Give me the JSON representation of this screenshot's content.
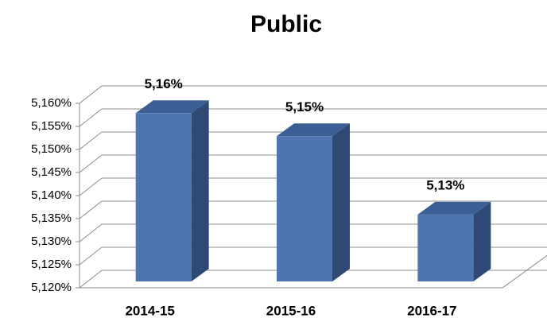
{
  "chart_data": {
    "type": "bar3d",
    "title": "Public",
    "categories": [
      "2014-15",
      "2015-16",
      "2016-17"
    ],
    "values": [
      5.1565,
      5.1515,
      5.1345
    ],
    "value_labels": [
      "5,16%",
      "5,15%",
      "5,13%"
    ],
    "color": "#4f75b0",
    "ylim": [
      5.12,
      5.16
    ],
    "yticks": [
      {
        "value": 5.12,
        "label": "5,120%"
      },
      {
        "value": 5.125,
        "label": "5,125%"
      },
      {
        "value": 5.13,
        "label": "5,130%"
      },
      {
        "value": 5.135,
        "label": "5,135%"
      },
      {
        "value": 5.14,
        "label": "5,140%"
      },
      {
        "value": 5.145,
        "label": "5,145%"
      },
      {
        "value": 5.15,
        "label": "5,150%"
      },
      {
        "value": 5.155,
        "label": "5,155%"
      },
      {
        "value": 5.16,
        "label": "5,160%"
      }
    ],
    "grid": true
  }
}
